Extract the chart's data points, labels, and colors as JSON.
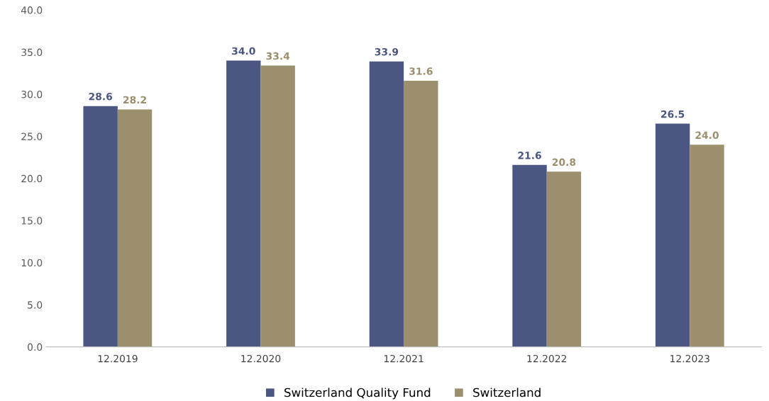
{
  "chart_data": {
    "type": "bar",
    "categories": [
      "12.2019",
      "12.2020",
      "12.2021",
      "12.2022",
      "12.2023"
    ],
    "series": [
      {
        "name": "Switzerland Quality Fund",
        "color": "#4b5682",
        "values": [
          28.6,
          34.0,
          33.9,
          21.6,
          26.5
        ],
        "value_labels": [
          "28.6",
          "34.0",
          "33.9",
          "21.6",
          "26.5"
        ]
      },
      {
        "name": "Switzerland",
        "color": "#9b8f6e",
        "values": [
          28.2,
          33.4,
          31.6,
          20.8,
          24.0
        ],
        "value_labels": [
          "28.2",
          "33.4",
          "31.6",
          "20.8",
          "24.0"
        ]
      }
    ],
    "ylim": [
      0,
      40
    ],
    "yticks": [
      {
        "value": 0,
        "label": "0.0"
      },
      {
        "value": 5,
        "label": "5.0"
      },
      {
        "value": 10,
        "label": "10.0"
      },
      {
        "value": 15,
        "label": "15.0"
      },
      {
        "value": 20,
        "label": "20.0"
      },
      {
        "value": 25,
        "label": "25.0"
      },
      {
        "value": 30,
        "label": "30.0"
      },
      {
        "value": 35,
        "label": "35.0"
      },
      {
        "value": 40,
        "label": "40.0"
      }
    ],
    "grid": false,
    "legend": "bottom"
  }
}
